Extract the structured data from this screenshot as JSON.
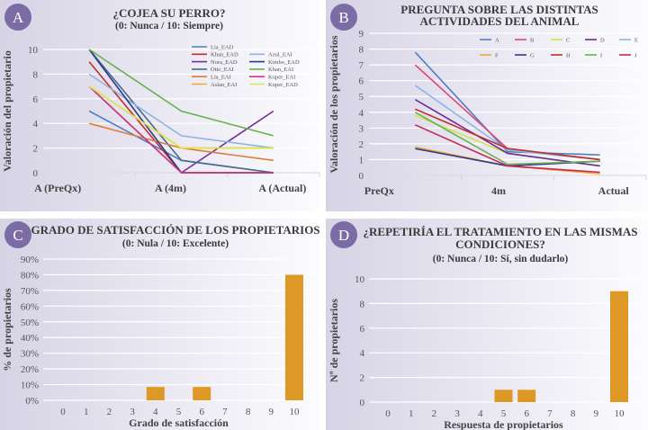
{
  "panels": {
    "A": {
      "badge": "A",
      "title": "¿COJEA SU PERRO?",
      "subtitle": "(0: Nunca / 10: Siempre)"
    },
    "B": {
      "badge": "B",
      "title": "PREGUNTA SOBRE LAS DISTINTAS",
      "title2": "ACTIVIDADES DEL ANIMAL"
    },
    "C": {
      "badge": "C",
      "title": "GRADO DE SATISFACCIÓN DE LOS PROPIETARIOS",
      "subtitle": "(0: Nula / 10: Excelente)"
    },
    "D": {
      "badge": "D",
      "title": "¿REPETIRÍA EL TRATAMIENTO EN LAS MISMAS",
      "title2": "CONDICIONES?",
      "subtitle": "(0: Nunca / 10: Sí, sin dudarlo)"
    }
  },
  "colors": {
    "badge": "#7b6ca6",
    "bar": "#de9826",
    "grid": "#ffffff",
    "axis": "#d0d0d8"
  },
  "chart_data": [
    {
      "type": "line",
      "title": "¿COJEA SU PERRO? (0: Nunca / 10: Siempre)",
      "ylabel": "Valoración del propietario",
      "xlabel": "",
      "categories": [
        "A (PreQx)",
        "A (4m)",
        "A (Actual)"
      ],
      "ylim": [
        0,
        10
      ],
      "yticks": [
        0,
        2,
        4,
        6,
        8,
        10
      ],
      "grid": true,
      "legend": "top-right",
      "series": [
        {
          "name": "Lía_EAD",
          "color": "#4f7fc0",
          "values": [
            5,
            1,
            0
          ]
        },
        {
          "name": "Khan_EAD",
          "color": "#c0302a",
          "values": [
            9,
            0,
            0
          ]
        },
        {
          "name": "Nora_EAD",
          "color": "#7030a0",
          "values": [
            7,
            0,
            5
          ]
        },
        {
          "name": "Otto_EAI",
          "color": "#4a6b8a",
          "values": [
            10,
            1,
            0
          ]
        },
        {
          "name": "Lía_EAI",
          "color": "#e07b39",
          "values": [
            4,
            2,
            1
          ]
        },
        {
          "name": "Aslan_EAI",
          "color": "#f0a830",
          "values": [
            7,
            2,
            2
          ]
        },
        {
          "name": "Azul_EAI",
          "color": "#8fb4e3",
          "values": [
            8,
            3,
            2
          ]
        },
        {
          "name": "Kimbo_EAD",
          "color": "#2e3a8c",
          "values": [
            10,
            0,
            0
          ]
        },
        {
          "name": "Khan_EAI",
          "color": "#6ab04c",
          "values": [
            10,
            5,
            3
          ]
        },
        {
          "name": "Kuper_EAI",
          "color": "#d03a7a",
          "values": [
            7,
            0,
            0
          ]
        },
        {
          "name": "Kuper_EAD",
          "color": "#d9e84a",
          "values": [
            7,
            2,
            2
          ]
        }
      ]
    },
    {
      "type": "line",
      "title": "PREGUNTA SOBRE LAS DISTINTAS ACTIVIDADES DEL ANIMAL",
      "ylabel": "Valoración de los propietarios",
      "xlabel": "",
      "categories": [
        "PreQx",
        "4m",
        "Actual"
      ],
      "ylim": [
        0,
        9
      ],
      "yticks": [
        0,
        1,
        2,
        3,
        4,
        5,
        6,
        7,
        8,
        9
      ],
      "grid": true,
      "legend": "top-right",
      "series": [
        {
          "name": "A",
          "color": "#4f7fc0",
          "values": [
            7.8,
            1.5,
            1.3
          ]
        },
        {
          "name": "B",
          "color": "#e0457b",
          "values": [
            7.0,
            1.7,
            1.0
          ]
        },
        {
          "name": "C",
          "color": "#d4e04a",
          "values": [
            3.8,
            1.4,
            0.6
          ]
        },
        {
          "name": "D",
          "color": "#6a2c9a",
          "values": [
            4.8,
            1.4,
            0.6
          ]
        },
        {
          "name": "E",
          "color": "#8fb4e3",
          "values": [
            5.7,
            1.6,
            1.0
          ]
        },
        {
          "name": "F",
          "color": "#f0a830",
          "values": [
            1.8,
            0.6,
            0.1
          ]
        },
        {
          "name": "G",
          "color": "#2e3a8c",
          "values": [
            1.7,
            0.6,
            0.9
          ]
        },
        {
          "name": "H",
          "color": "#c0302a",
          "values": [
            4.2,
            1.7,
            1.0
          ]
        },
        {
          "name": "I",
          "color": "#6ab04c",
          "values": [
            4.0,
            0.7,
            0.9
          ]
        },
        {
          "name": "J",
          "color": "#c02a5a",
          "values": [
            3.2,
            0.6,
            0.2
          ]
        }
      ]
    },
    {
      "type": "bar",
      "title": "GRADO DE SATISFACCIÓN DE LOS PROPIETARIOS (0: Nula / 10: Excelente)",
      "xlabel": "Grado de satisfacción",
      "ylabel": "% de propietarios",
      "categories": [
        "0",
        "1",
        "2",
        "3",
        "4",
        "5",
        "6",
        "7",
        "8",
        "9",
        "10"
      ],
      "values": [
        0,
        0,
        0,
        0,
        8.5,
        0,
        8.5,
        0,
        0,
        0,
        80
      ],
      "ylim": [
        0,
        90
      ],
      "yticks": [
        "0%",
        "10%",
        "20%",
        "30%",
        "40%",
        "50%",
        "60%",
        "70%",
        "80%",
        "90%"
      ],
      "grid": true
    },
    {
      "type": "bar",
      "title": "¿REPETIRÍA EL TRATAMIENTO EN LAS MISMAS CONDICIONES? (0: Nunca / 10: Sí, sin dudarlo)",
      "xlabel": "Respuesta de propietarios",
      "ylabel": "Nº de propietarios",
      "categories": [
        "0",
        "1",
        "2",
        "3",
        "4",
        "5",
        "6",
        "7",
        "8",
        "9",
        "10"
      ],
      "values": [
        0,
        0,
        0,
        0,
        0,
        1,
        1,
        0,
        0,
        0,
        9
      ],
      "ylim": [
        0,
        10
      ],
      "yticks": [
        "0",
        "2",
        "4",
        "6",
        "8",
        "10"
      ],
      "grid": true
    }
  ]
}
